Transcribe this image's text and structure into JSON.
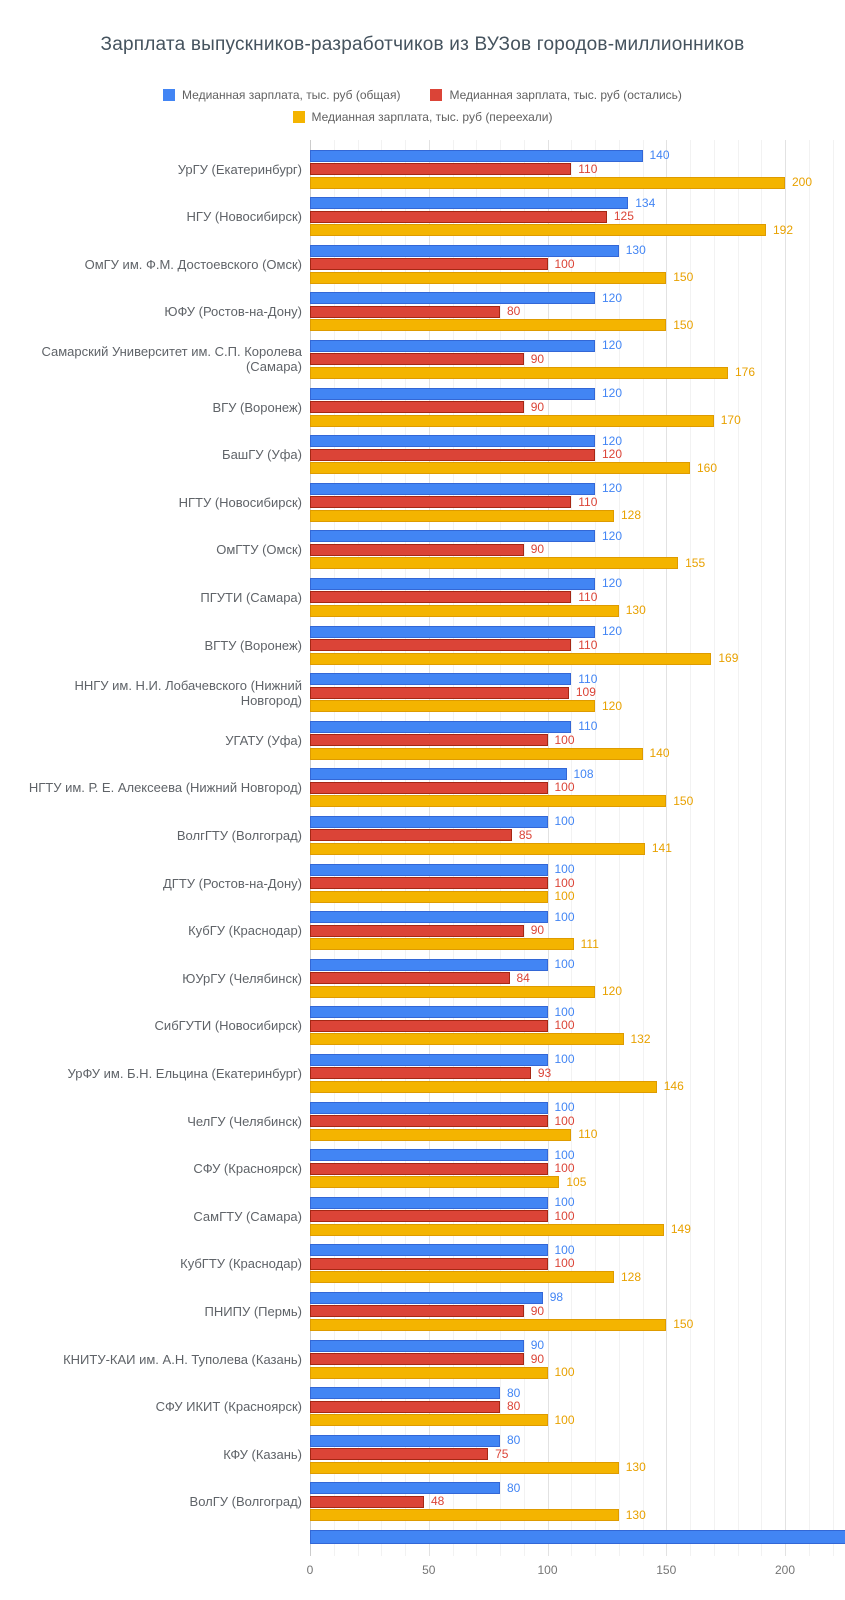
{
  "chart_data": {
    "type": "bar",
    "orientation": "horizontal",
    "title": "Зарплата выпускников-разработчиков из ВУЗов городов-миллионников",
    "categories": [
      "УрГУ (Екатеринбург)",
      "НГУ (Новосибирск)",
      "ОмГУ им. Ф.М. Достоевского (Омск)",
      "ЮФУ (Ростов-на-Дону)",
      "Самарский Университет им. С.П. Королева (Самара)",
      "ВГУ (Воронеж)",
      "БашГУ (Уфа)",
      "НГТУ (Новосибирск)",
      "ОмГТУ (Омск)",
      "ПГУТИ (Самара)",
      "ВГТУ (Воронеж)",
      "ННГУ им. Н.И. Лобачевского (Нижний Новгород)",
      "УГАТУ (Уфа)",
      "НГТУ им. Р. Е. Алексеева (Нижний Новгород)",
      "ВолгГТУ (Волгоград)",
      "ДГТУ (Ростов-на-Дону)",
      "КубГУ (Краснодар)",
      "ЮУрГУ (Челябинск)",
      "СибГУТИ (Новосибирск)",
      "УрФУ им. Б.Н. Ельцина (Екатеринбург)",
      "ЧелГУ (Челябинск)",
      "СФУ (Красноярск)",
      "СамГТУ (Самара)",
      "КубГТУ (Краснодар)",
      "ПНИПУ (Пермь)",
      "КНИТУ-КАИ им. А.Н. Туполева (Казань)",
      "СФУ ИКИТ (Красноярск)",
      "КФУ (Казань)",
      "ВолГУ (Волгоград)"
    ],
    "series": [
      {
        "key": "total",
        "name": "Медианная зарплата, тыс. руб (общая)",
        "color": "#4285F4",
        "border_color": "#3367D6",
        "label_color": "#4285F4",
        "values": [
          140,
          134,
          130,
          120,
          120,
          120,
          120,
          120,
          120,
          120,
          120,
          110,
          110,
          108,
          100,
          100,
          100,
          100,
          100,
          100,
          100,
          100,
          100,
          100,
          98,
          90,
          80,
          80,
          80
        ]
      },
      {
        "key": "stayed",
        "name": "Медианная зарплата, тыс. руб (остались)",
        "color": "#DB4437",
        "border_color": "#A52714",
        "label_color": "#DB4437",
        "values": [
          110,
          125,
          100,
          80,
          90,
          90,
          120,
          110,
          90,
          110,
          110,
          109,
          100,
          100,
          85,
          100,
          90,
          84,
          100,
          93,
          100,
          100,
          100,
          100,
          90,
          90,
          80,
          75,
          48
        ]
      },
      {
        "key": "moved",
        "name": "Медианная зарплата, тыс. руб (переехали)",
        "color": "#F4B400",
        "border_color": "#DE9B00",
        "label_color": "#E8A100",
        "values": [
          200,
          192,
          150,
          150,
          176,
          170,
          160,
          128,
          155,
          130,
          169,
          120,
          140,
          150,
          141,
          100,
          111,
          120,
          132,
          146,
          110,
          105,
          149,
          128,
          150,
          100,
          100,
          130,
          130
        ]
      }
    ],
    "xlim": [
      0,
      200
    ],
    "ticks": [
      0,
      50,
      100,
      150,
      200
    ],
    "grid": true,
    "legend": {
      "position": "top",
      "rows": [
        [
          0,
          1
        ],
        [
          2
        ]
      ]
    },
    "clipped_partial_bar": {
      "color": "#4285F4",
      "border_color": "#3367D6"
    }
  }
}
